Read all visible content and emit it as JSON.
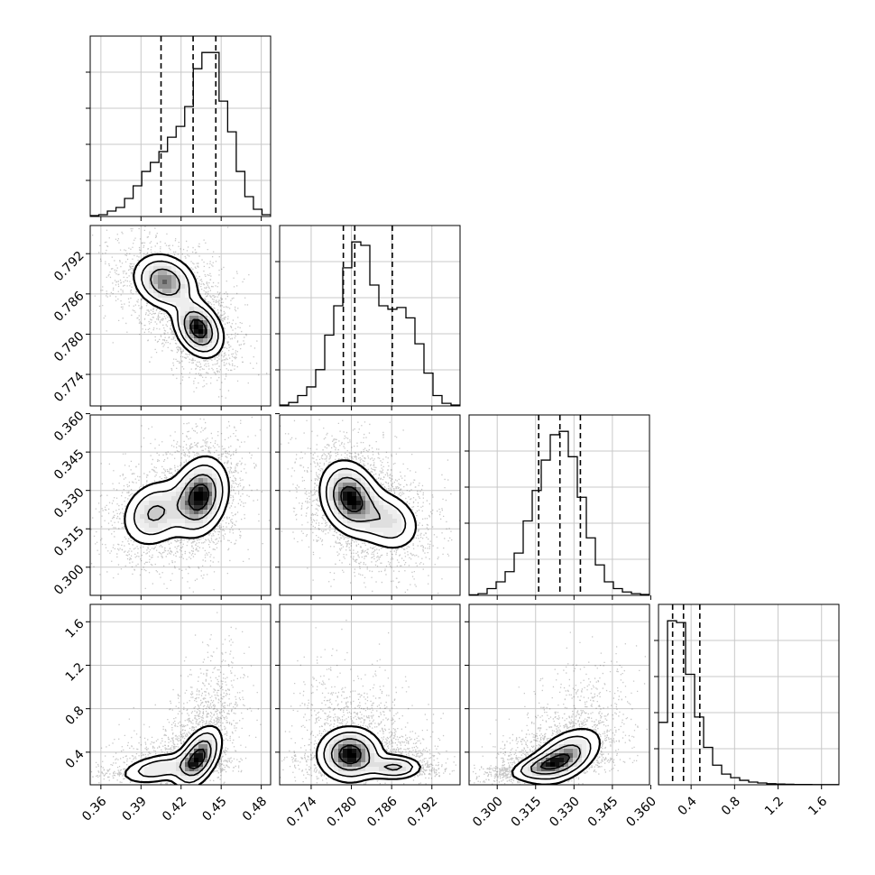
{
  "chart_data": {
    "type": "corner",
    "grid": true,
    "title": "",
    "parameters": [
      {
        "ticks": [
          0.36,
          0.39,
          0.42,
          0.45,
          0.48
        ],
        "tick_labels": [
          "0.36",
          "0.39",
          "0.42",
          "0.45",
          "0.48"
        ],
        "range": [
          0.352,
          0.487
        ],
        "quantiles": [
          0.405,
          0.429,
          0.446
        ],
        "hist": [
          0.5,
          1,
          3,
          5,
          10,
          17,
          25,
          30,
          36,
          44,
          50,
          61,
          82,
          91,
          91,
          64,
          47,
          25,
          11,
          4,
          1
        ]
      },
      {
        "ticks": [
          0.774,
          0.78,
          0.786,
          0.792
        ],
        "tick_labels": [
          "0.774",
          "0.780",
          "0.786",
          "0.792"
        ],
        "range": [
          0.7693,
          0.7962
        ],
        "quantiles": [
          0.7788,
          0.7805,
          0.7861
        ],
        "hist": [
          0.5,
          2,
          6,
          11,
          21,
          41,
          58,
          80,
          95,
          93,
          70,
          58,
          56,
          57,
          51,
          36,
          19,
          6,
          1.5,
          0.5
        ]
      },
      {
        "ticks": [
          0.3,
          0.315,
          0.33,
          0.345,
          0.36
        ],
        "tick_labels": [
          "0.300",
          "0.315",
          "0.330",
          "0.345",
          "0.360"
        ],
        "range": [
          0.289,
          0.3595
        ],
        "quantiles": [
          0.3162,
          0.3245,
          0.3325
        ],
        "hist": [
          0.3,
          1,
          4,
          8,
          14,
          25,
          44,
          62,
          80,
          95,
          97,
          82,
          58,
          34,
          18,
          8,
          4,
          2,
          1,
          0.5
        ]
      },
      {
        "ticks": [
          0.4,
          0.8,
          1.2,
          1.6
        ],
        "tick_labels": [
          "0.4",
          "0.8",
          "1.2",
          "1.6"
        ],
        "range": [
          0.1,
          1.76
        ],
        "quantiles": [
          0.23,
          0.33,
          0.48
        ],
        "hist": [
          35,
          92,
          91,
          62,
          38,
          21,
          11,
          6,
          4,
          2.5,
          1.5,
          1,
          0.6,
          0.4,
          0.3,
          0.2,
          0.15,
          0.1,
          0.1,
          0.1
        ]
      }
    ],
    "pairs": [
      {
        "row": 1,
        "col": 0,
        "points": [
          [
            0.408,
            0.7878
          ],
          [
            0.433,
            0.7808
          ]
        ],
        "weights": [
          0.8,
          1.0
        ],
        "spread": [
          [
            0.0125,
            0.0022
          ],
          [
            0.0095,
            0.0022
          ]
        ],
        "corr": [
          -0.2,
          -0.3
        ]
      },
      {
        "row": 2,
        "col": 0,
        "points": [
          [
            0.4,
            0.321
          ],
          [
            0.434,
            0.3275
          ]
        ],
        "weights": [
          0.6,
          1.0
        ],
        "spread": [
          [
            0.013,
            0.007
          ],
          [
            0.011,
            0.008
          ]
        ],
        "corr": [
          0.2,
          0.2
        ]
      },
      {
        "row": 2,
        "col": 1,
        "points": [
          [
            0.7798,
            0.327
          ],
          [
            0.7855,
            0.318
          ]
        ],
        "weights": [
          1.0,
          0.5
        ],
        "spread": [
          [
            0.0023,
            0.0075
          ],
          [
            0.0026,
            0.0065
          ]
        ],
        "corr": [
          -0.2,
          -0.2
        ]
      },
      {
        "row": 3,
        "col": 0,
        "points": [
          [
            0.403,
            0.25
          ],
          [
            0.433,
            0.35
          ]
        ],
        "weights": [
          0.5,
          1.0
        ],
        "spread": [
          [
            0.016,
            0.08
          ],
          [
            0.009,
            0.15
          ]
        ],
        "corr": [
          0.4,
          0.5
        ]
      },
      {
        "row": 3,
        "col": 1,
        "points": [
          [
            0.7798,
            0.38
          ],
          [
            0.7865,
            0.26
          ]
        ],
        "weights": [
          1.0,
          0.6
        ],
        "spread": [
          [
            0.0025,
            0.13
          ],
          [
            0.0022,
            0.06
          ]
        ],
        "corr": [
          0.0,
          0.0
        ]
      },
      {
        "row": 3,
        "col": 2,
        "points": [
          [
            0.3175,
            0.27
          ],
          [
            0.3265,
            0.36
          ]
        ],
        "weights": [
          0.7,
          1.0
        ],
        "spread": [
          [
            0.007,
            0.07
          ],
          [
            0.0075,
            0.14
          ]
        ],
        "corr": [
          0.5,
          0.5
        ]
      }
    ]
  }
}
